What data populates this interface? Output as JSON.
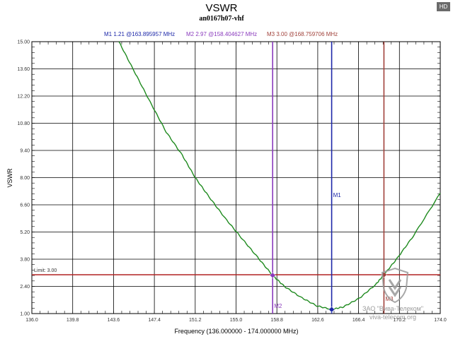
{
  "badge": "HD",
  "watermark": {
    "line1": "ЗАО \"Вива-Телеком\"",
    "line2": "viva-telecom.org",
    "icon": "shield-icon"
  },
  "colors": {
    "trace": "#1e8a1e",
    "m1": "#1c27a8",
    "m2": "#8a3bbd",
    "m3": "#a0413a",
    "limit": "#b22222",
    "grid": "#000000"
  },
  "chart_data": {
    "type": "line",
    "title": "VSWR",
    "subtitle": "an0167h07-vhf",
    "xlabel": "Frequency (136.000000 - 174.000000 MHz)",
    "ylabel": "VSWR",
    "xlim": [
      136.0,
      174.0
    ],
    "ylim": [
      1.0,
      15.0
    ],
    "grid": true,
    "x_ticks": [
      "136.0",
      "139.8",
      "143.6",
      "147.4",
      "151.2",
      "155.0",
      "158.8",
      "162.6",
      "166.4",
      "170.2",
      "174.0"
    ],
    "y_ticks": [
      "1.00",
      "2.40",
      "3.80",
      "5.20",
      "6.60",
      "8.00",
      "9.40",
      "10.80",
      "12.20",
      "13.60",
      "15.00"
    ],
    "series": [
      {
        "x": [
          144.1,
          145.5,
          147.0,
          148.5,
          150.0,
          151.2,
          152.5,
          154.0,
          155.5,
          157.0,
          158.4,
          159.5,
          161.0,
          162.5,
          163.9,
          165.0,
          166.5,
          168.0,
          168.76,
          170.0,
          171.5,
          174.0
        ],
        "y": [
          15.0,
          13.5,
          11.9,
          10.35,
          9.15,
          8.0,
          7.0,
          5.9,
          4.9,
          3.9,
          2.97,
          2.4,
          1.85,
          1.4,
          1.21,
          1.35,
          1.8,
          2.5,
          3.0,
          3.85,
          5.0,
          7.2
        ]
      }
    ],
    "limit": {
      "label": "Limit: 3.00",
      "value": 3.0
    },
    "markers": [
      {
        "id": "M1",
        "readout": "M1  1.21 @163.895957 MHz",
        "x": 163.895957,
        "y": 1.21
      },
      {
        "id": "M2",
        "readout": "M2  2.97 @158.404627 MHz",
        "x": 158.404627,
        "y": 2.97
      },
      {
        "id": "M3",
        "readout": "M3  3.00 @168.759706 MHz",
        "x": 168.759706,
        "y": 3.0
      }
    ]
  }
}
